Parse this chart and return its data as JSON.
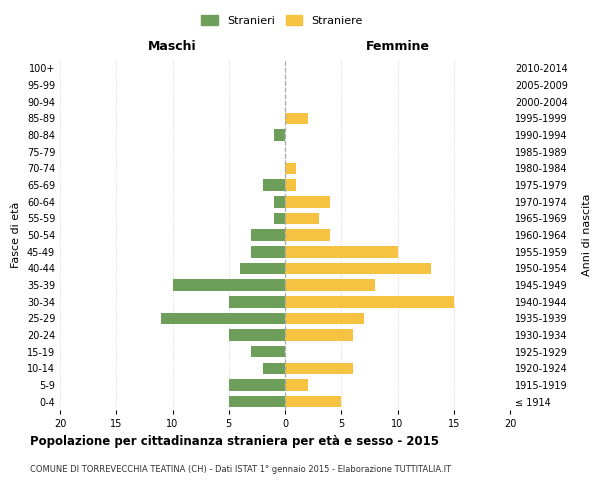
{
  "age_groups": [
    "100+",
    "95-99",
    "90-94",
    "85-89",
    "80-84",
    "75-79",
    "70-74",
    "65-69",
    "60-64",
    "55-59",
    "50-54",
    "45-49",
    "40-44",
    "35-39",
    "30-34",
    "25-29",
    "20-24",
    "15-19",
    "10-14",
    "5-9",
    "0-4"
  ],
  "birth_years": [
    "≤ 1914",
    "1915-1919",
    "1920-1924",
    "1925-1929",
    "1930-1934",
    "1935-1939",
    "1940-1944",
    "1945-1949",
    "1950-1954",
    "1955-1959",
    "1960-1964",
    "1965-1969",
    "1970-1974",
    "1975-1979",
    "1980-1984",
    "1985-1989",
    "1990-1994",
    "1995-1999",
    "2000-2004",
    "2005-2009",
    "2010-2014"
  ],
  "maschi": [
    0,
    0,
    0,
    0,
    1,
    0,
    0,
    2,
    1,
    1,
    3,
    3,
    4,
    10,
    5,
    11,
    5,
    3,
    2,
    5,
    5
  ],
  "femmine": [
    0,
    0,
    0,
    2,
    0,
    0,
    1,
    1,
    4,
    3,
    4,
    10,
    13,
    8,
    15,
    7,
    6,
    0,
    6,
    2,
    5
  ],
  "color_maschi": "#6d9e5a",
  "color_femmine": "#f5c242",
  "title": "Popolazione per cittadinanza straniera per età e sesso - 2015",
  "subtitle": "COMUNE DI TORREVECCHIA TEATINA (CH) - Dati ISTAT 1° gennaio 2015 - Elaborazione TUTTITALIA.IT",
  "xlabel_left": "Maschi",
  "xlabel_right": "Femmine",
  "ylabel_left": "Fasce di età",
  "ylabel_right": "Anni di nascita",
  "legend_maschi": "Stranieri",
  "legend_femmine": "Straniere",
  "xlim": 20,
  "background_color": "#ffffff",
  "grid_color": "#cccccc"
}
